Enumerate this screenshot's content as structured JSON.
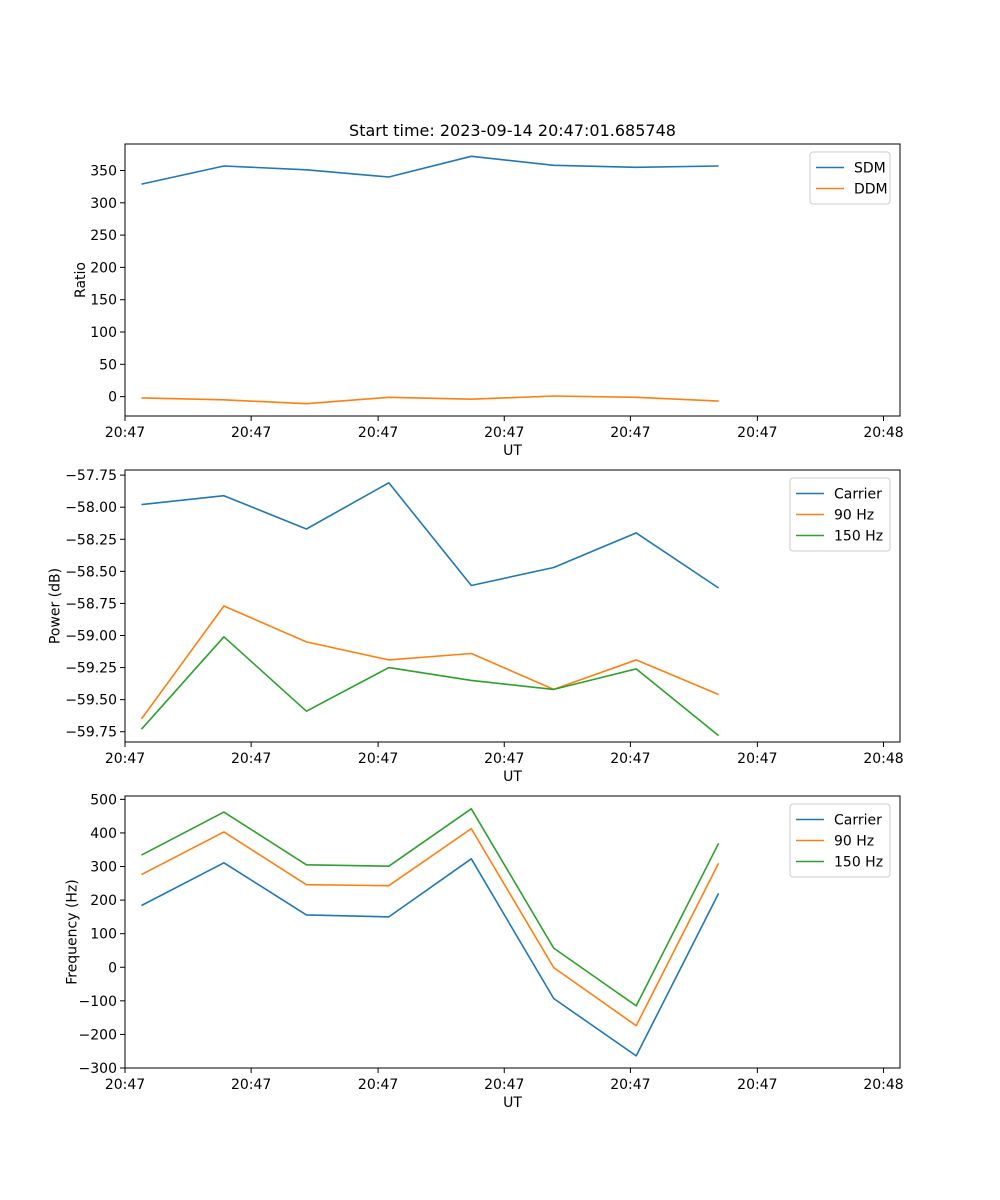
{
  "chart_data": [
    {
      "type": "line",
      "title": "Start time: 2023-09-14 20:47:01.685748",
      "xlabel": "UT",
      "ylabel": "Ratio",
      "grid": false,
      "legend_position": "upper-right",
      "x": [
        1,
        2,
        3,
        4,
        5,
        6,
        7,
        8
      ],
      "xlim": [
        0.8,
        10.2
      ],
      "xticks": [
        {
          "pos": 0.8,
          "label": "20:47"
        },
        {
          "pos": 2.33,
          "label": "20:47"
        },
        {
          "pos": 3.87,
          "label": "20:47"
        },
        {
          "pos": 5.4,
          "label": "20:47"
        },
        {
          "pos": 6.93,
          "label": "20:47"
        },
        {
          "pos": 8.47,
          "label": "20:47"
        },
        {
          "pos": 10.0,
          "label": "20:48"
        }
      ],
      "ylim": [
        -30,
        391
      ],
      "yticks": [
        0,
        50,
        100,
        150,
        200,
        250,
        300,
        350
      ],
      "series": [
        {
          "name": "SDM",
          "color": "#1f77b4",
          "values": [
            329,
            357,
            351,
            340,
            372,
            358,
            355,
            357
          ]
        },
        {
          "name": "DDM",
          "color": "#ff7f0e",
          "values": [
            -2,
            -5,
            -11,
            -1,
            -4,
            1,
            -1,
            -7
          ]
        }
      ]
    },
    {
      "type": "line",
      "xlabel": "UT",
      "ylabel": "Power (dB)",
      "grid": false,
      "legend_position": "upper-right",
      "x": [
        1,
        2,
        3,
        4,
        5,
        6,
        7,
        8
      ],
      "xlim": [
        0.8,
        10.2
      ],
      "xticks": [
        {
          "pos": 0.8,
          "label": "20:47"
        },
        {
          "pos": 2.33,
          "label": "20:47"
        },
        {
          "pos": 3.87,
          "label": "20:47"
        },
        {
          "pos": 5.4,
          "label": "20:47"
        },
        {
          "pos": 6.93,
          "label": "20:47"
        },
        {
          "pos": 8.47,
          "label": "20:47"
        },
        {
          "pos": 10.0,
          "label": "20:48"
        }
      ],
      "ylim": [
        -59.83,
        -57.71
      ],
      "yticks": [
        {
          "value": -57.75,
          "label": "−57.75"
        },
        {
          "value": -58.0,
          "label": "−58.00"
        },
        {
          "value": -58.25,
          "label": "−58.25"
        },
        {
          "value": -58.5,
          "label": "−58.50"
        },
        {
          "value": -58.75,
          "label": "−58.75"
        },
        {
          "value": -59.0,
          "label": "−59.00"
        },
        {
          "value": -59.25,
          "label": "−59.25"
        },
        {
          "value": -59.5,
          "label": "−59.50"
        },
        {
          "value": -59.75,
          "label": "−59.75"
        }
      ],
      "series": [
        {
          "name": "Carrier",
          "color": "#1f77b4",
          "values": [
            -57.98,
            -57.91,
            -58.17,
            -57.81,
            -58.61,
            -58.47,
            -58.2,
            -58.63
          ]
        },
        {
          "name": "90 Hz",
          "color": "#ff7f0e",
          "values": [
            -59.65,
            -58.77,
            -59.05,
            -59.19,
            -59.14,
            -59.42,
            -59.19,
            -59.46
          ]
        },
        {
          "name": "150 Hz",
          "color": "#2ca02c",
          "values": [
            -59.73,
            -59.01,
            -59.59,
            -59.25,
            -59.35,
            -59.42,
            -59.26,
            -59.78
          ]
        }
      ]
    },
    {
      "type": "line",
      "xlabel": "UT",
      "ylabel": "Frequency (Hz)",
      "grid": false,
      "legend_position": "upper-right",
      "x": [
        1,
        2,
        3,
        4,
        5,
        6,
        7,
        8
      ],
      "xlim": [
        0.8,
        10.2
      ],
      "xticks": [
        {
          "pos": 0.8,
          "label": "20:47"
        },
        {
          "pos": 2.33,
          "label": "20:47"
        },
        {
          "pos": 3.87,
          "label": "20:47"
        },
        {
          "pos": 5.4,
          "label": "20:47"
        },
        {
          "pos": 6.93,
          "label": "20:47"
        },
        {
          "pos": 8.47,
          "label": "20:47"
        },
        {
          "pos": 10.0,
          "label": "20:48"
        }
      ],
      "ylim": [
        -300,
        510
      ],
      "yticks": [
        {
          "value": 500,
          "label": "500"
        },
        {
          "value": 400,
          "label": "400"
        },
        {
          "value": 300,
          "label": "300"
        },
        {
          "value": 200,
          "label": "200"
        },
        {
          "value": 100,
          "label": "100"
        },
        {
          "value": 0,
          "label": "0"
        },
        {
          "value": -100,
          "label": "−100"
        },
        {
          "value": -200,
          "label": "−200"
        },
        {
          "value": -300,
          "label": "−300"
        }
      ],
      "series": [
        {
          "name": "Carrier",
          "color": "#1f77b4",
          "values": [
            184,
            311,
            156,
            150,
            323,
            -93,
            -264,
            220
          ]
        },
        {
          "name": "90 Hz",
          "color": "#ff7f0e",
          "values": [
            276,
            403,
            246,
            243,
            413,
            -1,
            -174,
            310
          ]
        },
        {
          "name": "150 Hz",
          "color": "#2ca02c",
          "values": [
            334,
            462,
            305,
            301,
            472,
            57,
            -115,
            369
          ]
        }
      ]
    }
  ]
}
